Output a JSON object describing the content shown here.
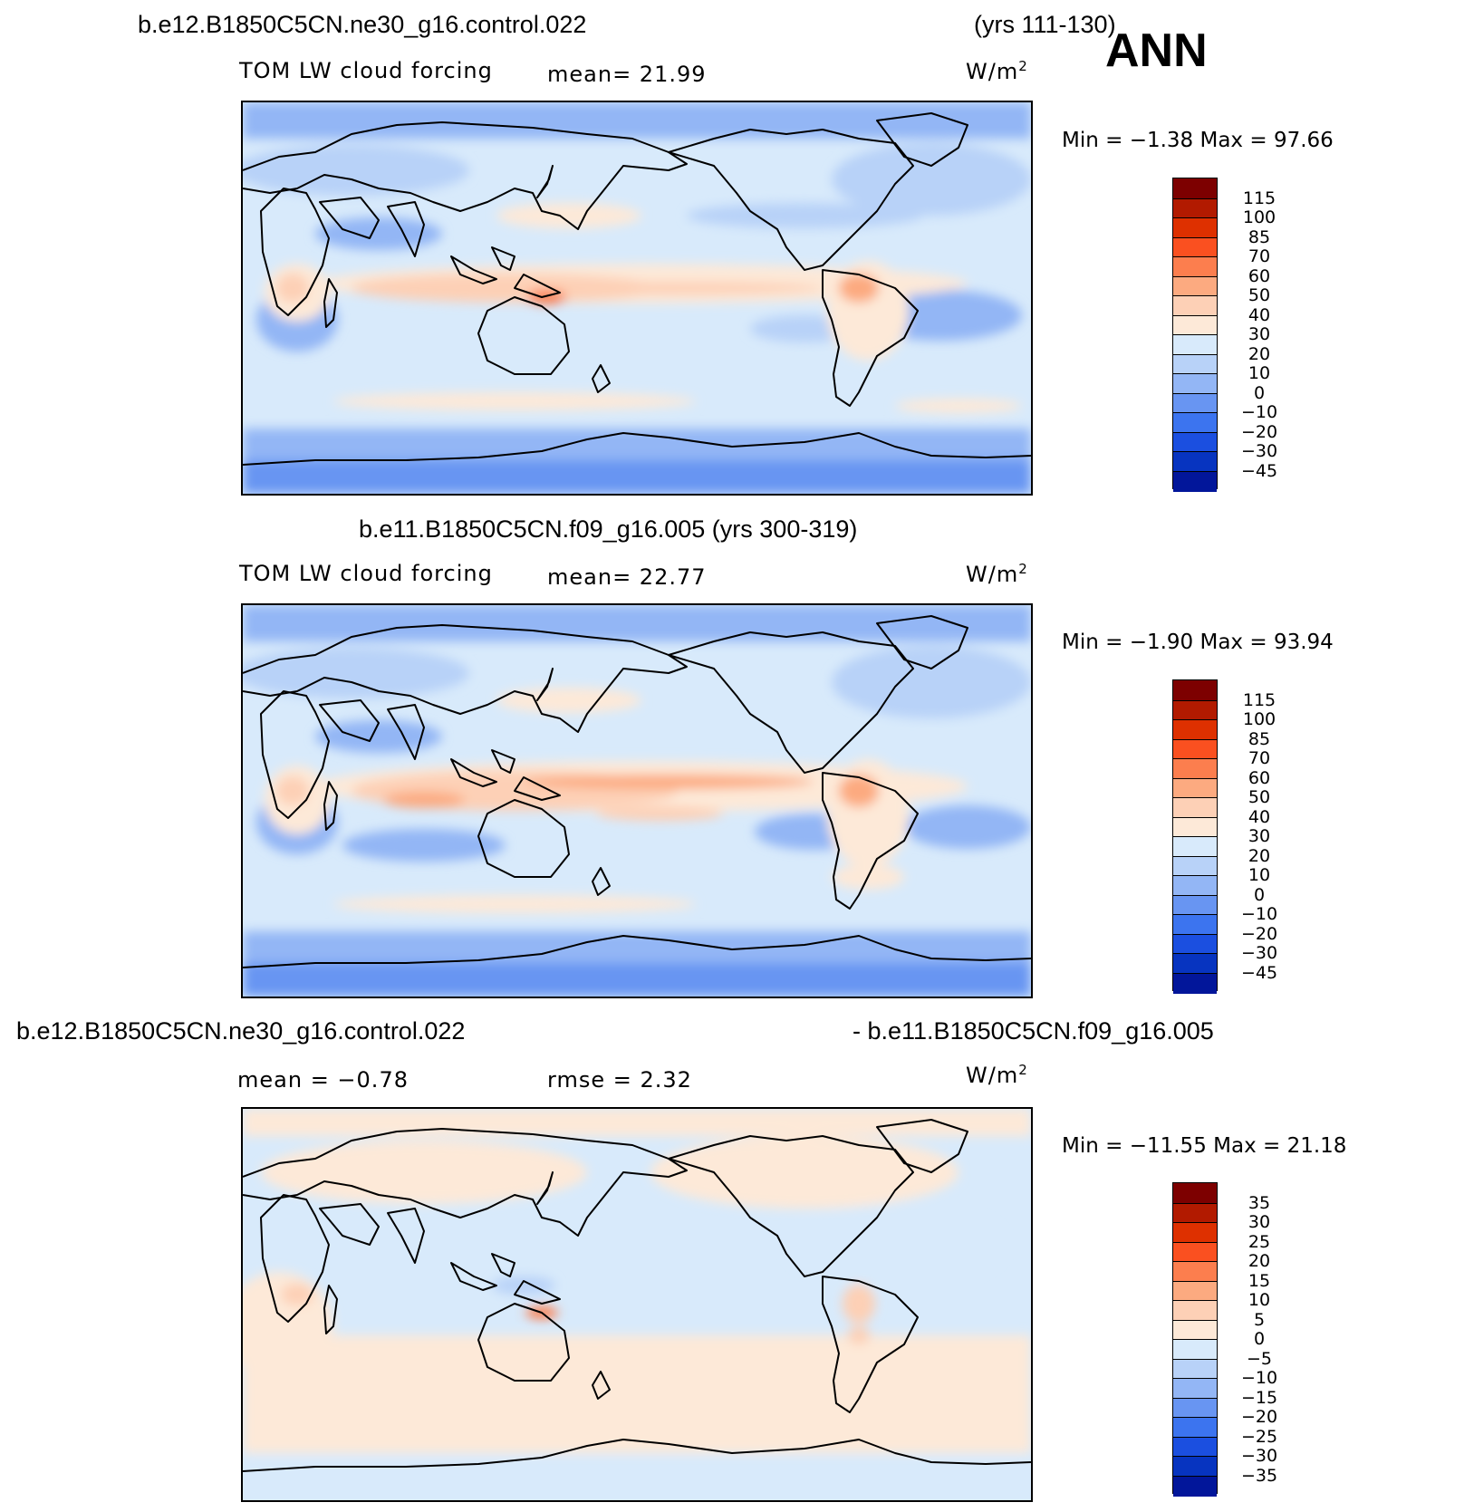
{
  "header": {
    "title_left": "b.e12.B1850C5CN.ne30_g16.control.022",
    "title_years": "(yrs 111-130)",
    "season": "ANN"
  },
  "panel1": {
    "variable": "TOM LW cloud forcing",
    "mean": "mean=   21.99",
    "units": "W/m",
    "units_exp": "2",
    "minmax": "Min  =   −1.38  Max  =   97.66",
    "levels": [
      "115",
      "100",
      "85",
      "70",
      "60",
      "50",
      "40",
      "30",
      "20",
      "10",
      "0",
      "−10",
      "−20",
      "−30",
      "−45"
    ]
  },
  "panel2": {
    "title": "b.e11.B1850C5CN.f09_g16.005 (yrs 300-319)",
    "variable": "TOM LW cloud forcing",
    "mean": "mean=   22.77",
    "units": "W/m",
    "units_exp": "2",
    "minmax": "Min  =   −1.90  Max  =   93.94",
    "levels": [
      "115",
      "100",
      "85",
      "70",
      "60",
      "50",
      "40",
      "30",
      "20",
      "10",
      "0",
      "−10",
      "−20",
      "−30",
      "−45"
    ]
  },
  "panel3": {
    "title_left": "b.e12.B1850C5CN.ne30_g16.control.022",
    "title_right": "- b.e11.B1850C5CN.f09_g16.005",
    "mean": "mean  =    −0.78",
    "rmse": "rmse  =     2.32",
    "units": "W/m",
    "units_exp": "2",
    "minmax": "Min  = −11.55  Max  =    21.18",
    "levels": [
      "35",
      "30",
      "25",
      "20",
      "15",
      "10",
      "5",
      "0",
      "−5",
      "−10",
      "−15",
      "−20",
      "−25",
      "−30",
      "−35"
    ]
  },
  "colors": {
    "scale": [
      "#7d0000",
      "#b21a00",
      "#de3000",
      "#fa5020",
      "#fc7e4e",
      "#fcaa80",
      "#fdd0b6",
      "#fde9d8",
      "#d8eafb",
      "#b8d2f8",
      "#93b6f5",
      "#6895f2",
      "#3c74ef",
      "#1b4fe0",
      "#0734c0",
      "#02169a"
    ]
  }
}
